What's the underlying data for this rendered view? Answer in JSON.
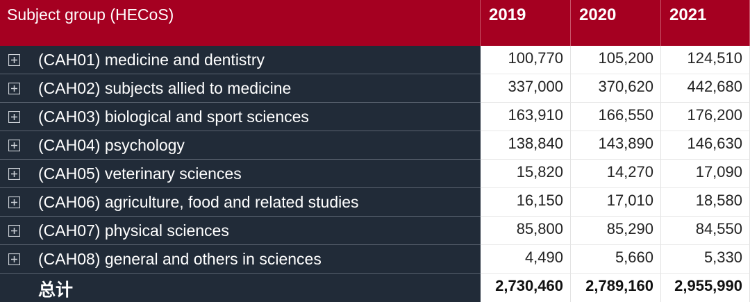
{
  "header": {
    "title": "Subject group (HECoS)",
    "years": [
      "2019",
      "2020",
      "2021"
    ]
  },
  "rows": [
    {
      "label": "(CAH01) medicine and dentistry",
      "values": [
        "100,770",
        "105,200",
        "124,510"
      ]
    },
    {
      "label": "(CAH02) subjects allied to medicine",
      "values": [
        "337,000",
        "370,620",
        "442,680"
      ]
    },
    {
      "label": "(CAH03) biological and sport sciences",
      "values": [
        "163,910",
        "166,550",
        "176,200"
      ]
    },
    {
      "label": "(CAH04) psychology",
      "values": [
        "138,840",
        "143,890",
        "146,630"
      ]
    },
    {
      "label": "(CAH05) veterinary sciences",
      "values": [
        "15,820",
        "14,270",
        "17,090"
      ]
    },
    {
      "label": "(CAH06) agriculture, food and related studies",
      "values": [
        "16,150",
        "17,010",
        "18,580"
      ]
    },
    {
      "label": "(CAH07) physical sciences",
      "values": [
        "85,800",
        "85,290",
        "84,550"
      ]
    },
    {
      "label": "(CAH08) general and others in sciences",
      "values": [
        "4,490",
        "5,660",
        "5,330"
      ]
    }
  ],
  "total": {
    "label": "总计",
    "values": [
      "2,730,460",
      "2,789,160",
      "2,955,990"
    ]
  }
}
